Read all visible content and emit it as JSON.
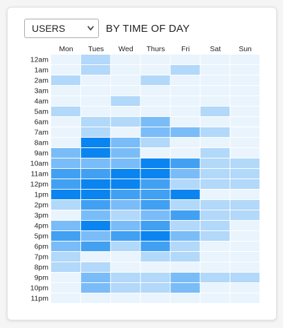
{
  "chart_data": {
    "type": "heatmap",
    "selector": "USERS",
    "title": "BY TIME OF DAY",
    "x": [
      "Mon",
      "Tues",
      "Wed",
      "Thurs",
      "Fri",
      "Sat",
      "Sun"
    ],
    "y": [
      "12am",
      "1am",
      "2am",
      "3am",
      "4am",
      "5am",
      "6am",
      "7am",
      "8am",
      "9am",
      "10am",
      "11am",
      "12pm",
      "1pm",
      "2pm",
      "3pm",
      "4pm",
      "5pm",
      "6pm",
      "7pm",
      "8pm",
      "9pm",
      "10pm",
      "11pm"
    ],
    "values": [
      [
        1,
        2,
        1,
        1,
        1,
        1,
        1
      ],
      [
        1,
        2,
        1,
        1,
        2,
        1,
        1
      ],
      [
        2,
        1,
        1,
        2,
        1,
        1,
        1
      ],
      [
        1,
        1,
        1,
        1,
        1,
        1,
        1
      ],
      [
        1,
        1,
        2,
        1,
        1,
        1,
        1
      ],
      [
        2,
        1,
        1,
        1,
        1,
        2,
        1
      ],
      [
        1,
        2,
        2,
        3,
        1,
        1,
        1
      ],
      [
        1,
        2,
        1,
        3,
        3,
        2,
        1
      ],
      [
        1,
        5,
        3,
        2,
        1,
        1,
        1
      ],
      [
        3,
        5,
        3,
        1,
        1,
        2,
        1
      ],
      [
        3,
        3,
        3,
        5,
        4,
        2,
        2
      ],
      [
        4,
        4,
        5,
        5,
        3,
        2,
        2
      ],
      [
        4,
        5,
        5,
        4,
        2,
        2,
        2
      ],
      [
        5,
        5,
        4,
        4,
        5,
        1,
        1
      ],
      [
        2,
        4,
        3,
        4,
        2,
        2,
        2
      ],
      [
        1,
        3,
        2,
        3,
        4,
        2,
        2
      ],
      [
        3,
        5,
        3,
        4,
        2,
        2,
        1
      ],
      [
        4,
        3,
        4,
        5,
        3,
        2,
        1
      ],
      [
        3,
        4,
        2,
        4,
        2,
        1,
        1
      ],
      [
        2,
        1,
        1,
        2,
        2,
        1,
        1
      ],
      [
        2,
        2,
        1,
        1,
        1,
        1,
        1
      ],
      [
        1,
        3,
        2,
        2,
        3,
        2,
        2
      ],
      [
        1,
        3,
        2,
        2,
        3,
        1,
        1
      ],
      [
        1,
        1,
        1,
        1,
        1,
        1,
        1
      ]
    ],
    "zlim": [
      1,
      5
    ],
    "colors": [
      "#eaf4fd",
      "#0a84f0"
    ]
  }
}
